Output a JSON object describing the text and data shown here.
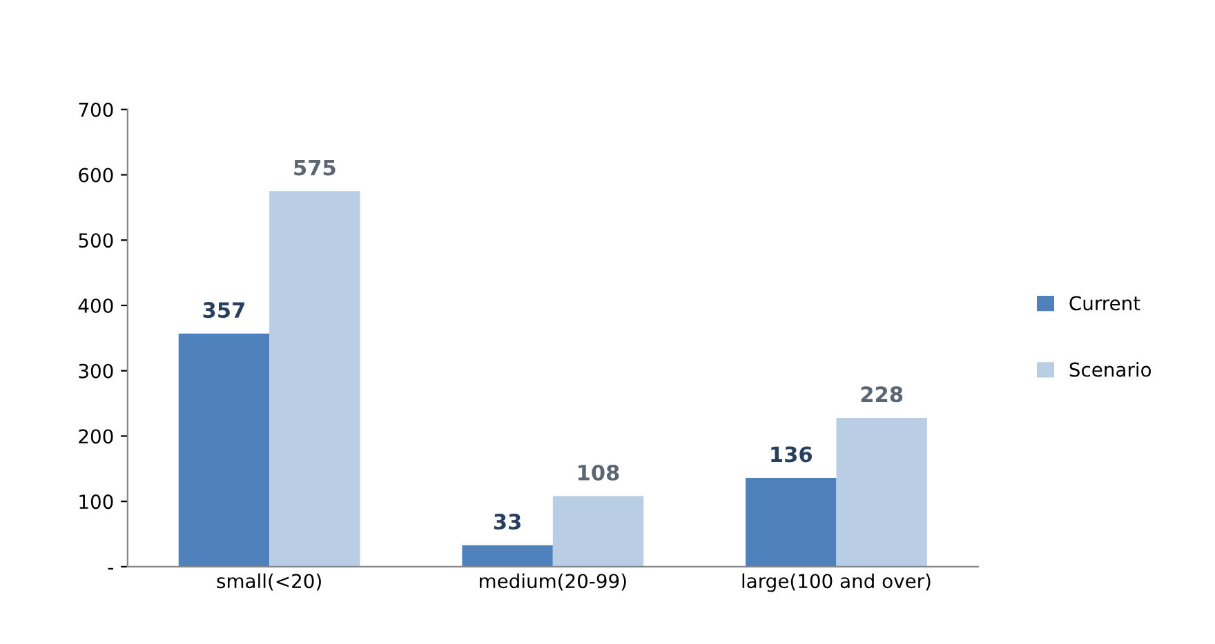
{
  "chart_data": {
    "type": "bar",
    "categories": [
      "small(<20)",
      "medium(20-99)",
      "large(100 and over)"
    ],
    "series": [
      {
        "name": "Current",
        "color": "#4f81bd",
        "values": [
          357,
          33,
          136
        ]
      },
      {
        "name": "Scenario",
        "color": "#b9cde5",
        "values": [
          575,
          108,
          228
        ]
      }
    ],
    "ylim": [
      0,
      700
    ],
    "yticks": [
      {
        "value": 0,
        "label": "-"
      },
      100,
      200,
      300,
      400,
      500,
      600,
      700
    ],
    "data_labels": true,
    "grid": false,
    "legend": "right"
  }
}
